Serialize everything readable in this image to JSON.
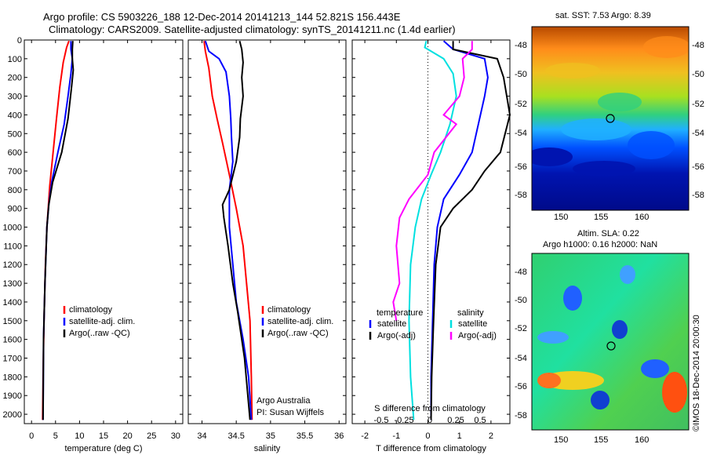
{
  "titles": {
    "line1": "Argo profile: CS 5903226_188 12-Dec-2014 20141213_144 52.821S 156.443E",
    "line2": "Climatology: CARS2009. Satellite-adjusted climatology: synTS_20141211.nc (1.4d earlier)"
  },
  "colors": {
    "climatology": "#ff0000",
    "satellite": "#0000ff",
    "argo": "#000000",
    "sat_salinity": "#00e0e0",
    "argo_salinity": "#ff00ff"
  },
  "chart_data": [
    {
      "type": "line",
      "xlabel": "temperature (deg C)",
      "ylabel": "",
      "xlim": [
        -1.5,
        31.5
      ],
      "ylim": [
        2050,
        0
      ],
      "x_ticks": [
        0,
        5,
        10,
        15,
        20,
        25,
        30
      ],
      "y_ticks": [
        0,
        100,
        200,
        300,
        400,
        500,
        600,
        700,
        800,
        900,
        1000,
        1100,
        1200,
        1300,
        1400,
        1500,
        1600,
        1700,
        1800,
        1900,
        2000
      ],
      "legend": [
        "climatology",
        "satellite-adj. clim.",
        "Argo(..raw -QC)"
      ],
      "series": [
        {
          "name": "climatology",
          "color": "#ff0000",
          "points": [
            [
              7.8,
              5
            ],
            [
              7.3,
              40
            ],
            [
              6.6,
              120
            ],
            [
              5.9,
              250
            ],
            [
              5.2,
              420
            ],
            [
              4.5,
              600
            ],
            [
              3.8,
              780
            ],
            [
              3.2,
              1000
            ],
            [
              2.9,
              1200
            ],
            [
              2.6,
              1500
            ],
            [
              2.4,
              1800
            ],
            [
              2.3,
              2030
            ]
          ]
        },
        {
          "name": "satellite-adj. clim.",
          "color": "#0000ff",
          "points": [
            [
              8.2,
              5
            ],
            [
              8.2,
              50
            ],
            [
              8.5,
              100
            ],
            [
              8.2,
              180
            ],
            [
              7.6,
              300
            ],
            [
              6.8,
              450
            ],
            [
              5.5,
              600
            ],
            [
              4.2,
              760
            ],
            [
              3.6,
              880
            ],
            [
              3.2,
              1000
            ],
            [
              2.8,
              1300
            ],
            [
              2.5,
              1600
            ],
            [
              2.4,
              2030
            ]
          ]
        },
        {
          "name": "Argo(..raw -QC)",
          "color": "#000000",
          "points": [
            [
              8.6,
              5
            ],
            [
              8.5,
              50
            ],
            [
              8.5,
              100
            ],
            [
              8.7,
              160
            ],
            [
              8.3,
              260
            ],
            [
              7.6,
              420
            ],
            [
              6.3,
              600
            ],
            [
              4.4,
              760
            ],
            [
              3.6,
              880
            ],
            [
              3.2,
              1000
            ],
            [
              2.8,
              1300
            ],
            [
              2.5,
              1600
            ],
            [
              2.4,
              2030
            ]
          ]
        }
      ]
    },
    {
      "type": "line",
      "xlabel": "salinity",
      "ylabel": "",
      "xlim": [
        33.8,
        36.1
      ],
      "ylim": [
        2050,
        0
      ],
      "x_ticks": [
        34,
        34.5,
        35,
        35.5,
        36
      ],
      "legend": [
        "climatology",
        "satellite-adj. clim.",
        "Argo(..raw -QC)"
      ],
      "annotation_lines": [
        "Argo Australia",
        "PI: Susan Wijffels"
      ],
      "series": [
        {
          "name": "climatology",
          "color": "#ff0000",
          "points": [
            [
              34.03,
              5
            ],
            [
              34.05,
              60
            ],
            [
              34.1,
              150
            ],
            [
              34.15,
              300
            ],
            [
              34.22,
              420
            ],
            [
              34.3,
              550
            ],
            [
              34.4,
              720
            ],
            [
              34.5,
              900
            ],
            [
              34.6,
              1100
            ],
            [
              34.65,
              1300
            ],
            [
              34.7,
              1500
            ],
            [
              34.72,
              1800
            ],
            [
              34.73,
              2030
            ]
          ]
        },
        {
          "name": "satellite-adj. clim.",
          "color": "#0000ff",
          "points": [
            [
              34.05,
              5
            ],
            [
              34.1,
              60
            ],
            [
              34.25,
              100
            ],
            [
              34.35,
              170
            ],
            [
              34.4,
              300
            ],
            [
              34.42,
              420
            ],
            [
              34.43,
              520
            ],
            [
              34.45,
              650
            ],
            [
              34.4,
              800
            ],
            [
              34.4,
              1000
            ],
            [
              34.45,
              1200
            ],
            [
              34.5,
              1400
            ],
            [
              34.6,
              1600
            ],
            [
              34.68,
              1800
            ],
            [
              34.72,
              2030
            ]
          ]
        },
        {
          "name": "Argo(..raw -QC)",
          "color": "#000000",
          "points": [
            [
              34.55,
              5
            ],
            [
              34.58,
              50
            ],
            [
              34.6,
              120
            ],
            [
              34.58,
              200
            ],
            [
              34.6,
              300
            ],
            [
              34.56,
              420
            ],
            [
              34.55,
              520
            ],
            [
              34.5,
              650
            ],
            [
              34.4,
              800
            ],
            [
              34.3,
              880
            ],
            [
              34.32,
              950
            ],
            [
              34.38,
              1100
            ],
            [
              34.45,
              1300
            ],
            [
              34.52,
              1450
            ],
            [
              34.62,
              1700
            ],
            [
              34.7,
              2030
            ]
          ]
        }
      ]
    },
    {
      "type": "line",
      "xlabel": "T difference from climatology",
      "x2label": "S difference from climatology",
      "ylabel": "",
      "xlim": [
        -2.4,
        2.6
      ],
      "ylim": [
        2050,
        0
      ],
      "x_ticks": [
        -2,
        -1,
        0,
        1,
        2
      ],
      "x2_ticks": [
        -0.5,
        -0.25,
        0,
        0.25,
        0.5
      ],
      "legend_headers": [
        "temperature",
        "salinity"
      ],
      "legend": [
        "satellite",
        "Argo(-adj)",
        "satellite",
        "Argo(-adj)"
      ],
      "series": [
        {
          "name": "satellite",
          "color": "#0000ff",
          "points": [
            [
              0.5,
              5
            ],
            [
              0.8,
              50
            ],
            [
              1.8,
              100
            ],
            [
              1.9,
              200
            ],
            [
              1.8,
              300
            ],
            [
              1.6,
              450
            ],
            [
              1.4,
              600
            ],
            [
              1.0,
              720
            ],
            [
              0.5,
              850
            ],
            [
              0.3,
              1000
            ],
            [
              0.2,
              1200
            ],
            [
              0.15,
              1500
            ],
            [
              0.1,
              1800
            ],
            [
              0.1,
              2030
            ]
          ]
        },
        {
          "name": "Argo(-adj)",
          "color": "#000000",
          "points": [
            [
              0.8,
              5
            ],
            [
              0.8,
              50
            ],
            [
              2.2,
              100
            ],
            [
              2.4,
              200
            ],
            [
              2.6,
              400
            ],
            [
              2.3,
              600
            ],
            [
              1.8,
              700
            ],
            [
              1.4,
              800
            ],
            [
              0.8,
              900
            ],
            [
              0.4,
              1000
            ],
            [
              0.25,
              1200
            ],
            [
              0.18,
              1500
            ],
            [
              0.12,
              1800
            ],
            [
              0.1,
              2030
            ]
          ]
        },
        {
          "name": "satellite",
          "color": "#00e0e0",
          "points": [
            [
              -0.05,
              5
            ],
            [
              -0.1,
              40
            ],
            [
              0.5,
              100
            ],
            [
              0.8,
              180
            ],
            [
              0.9,
              300
            ],
            [
              0.7,
              450
            ],
            [
              0.4,
              600
            ],
            [
              0.1,
              720
            ],
            [
              -0.2,
              850
            ],
            [
              -0.4,
              1000
            ],
            [
              -0.55,
              1200
            ],
            [
              -0.6,
              1500
            ],
            [
              -0.55,
              1800
            ],
            [
              -0.45,
              2030
            ]
          ]
        },
        {
          "name": "Argo(-adj)",
          "color": "#ff00ff",
          "points": [
            [
              1.4,
              5
            ],
            [
              1.4,
              50
            ],
            [
              1.1,
              100
            ],
            [
              1.15,
              200
            ],
            [
              1.0,
              300
            ],
            [
              0.5,
              400
            ],
            [
              0.9,
              450
            ],
            [
              0.2,
              600
            ],
            [
              0.0,
              720
            ],
            [
              -0.6,
              850
            ],
            [
              -0.9,
              950
            ],
            [
              -1.0,
              1100
            ],
            [
              -0.9,
              1300
            ],
            [
              -1.1,
              1400
            ],
            [
              -1.0,
              1500
            ]
          ]
        }
      ]
    }
  ],
  "maps": {
    "sst": {
      "title": "sat. SST: 7.53 Argo: 8.39",
      "x_ticks": [
        "150",
        "155",
        "160"
      ],
      "y_ticks": [
        "-48",
        "-50",
        "-52",
        "-54",
        "-56",
        "-58"
      ]
    },
    "sla": {
      "title_line1": "Altim. SLA: 0.22",
      "title_line2": "Argo h1000: 0.16 h2000: NaN",
      "x_ticks": [
        "150",
        "155",
        "160"
      ],
      "y_ticks": [
        "-48",
        "-50",
        "-52",
        "-54",
        "-56",
        "-58"
      ],
      "stamp": "©IMOS 18-Dec-2014 20:00:30"
    }
  }
}
